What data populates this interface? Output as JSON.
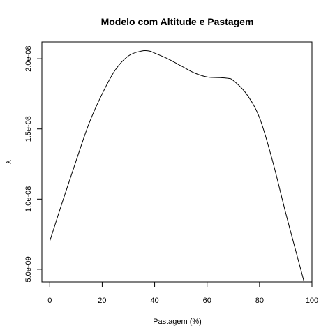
{
  "chart_data": {
    "type": "line",
    "title": "Modelo com Altitude e Pastagem",
    "xlabel": "Pastagem (%)",
    "ylabel": "λ",
    "xlim": [
      -3,
      100
    ],
    "ylim": [
      4.1e-09,
      2.12e-08
    ],
    "x_ticks": [
      0,
      20,
      40,
      60,
      80,
      100
    ],
    "x_tick_labels": [
      "0",
      "20",
      "40",
      "60",
      "80",
      "100"
    ],
    "y_ticks": [
      5e-09,
      1e-08,
      1.5e-08,
      2e-08
    ],
    "y_tick_labels": [
      "5.0e-09",
      "1.0e-08",
      "1.5e-08",
      "2.0e-08"
    ],
    "grid": false,
    "legend": "none",
    "line_color": "#000000",
    "series": [
      {
        "x": [
          0,
          5,
          10,
          15,
          20,
          25,
          30,
          35,
          38,
          40,
          45,
          50,
          55,
          60,
          65,
          68,
          70,
          75,
          80,
          85,
          90,
          95,
          97
        ],
        "values": [
          7e-09,
          9.9e-09,
          1.27e-08,
          1.54e-08,
          1.75e-08,
          1.92e-08,
          2.02e-08,
          2.055e-08,
          2.055e-08,
          2.04e-08,
          2e-08,
          1.95e-08,
          1.9e-08,
          1.87e-08,
          1.865e-08,
          1.86e-08,
          1.845e-08,
          1.75e-08,
          1.58e-08,
          1.27e-08,
          9e-09,
          5.5e-09,
          4.1e-09
        ]
      }
    ]
  }
}
